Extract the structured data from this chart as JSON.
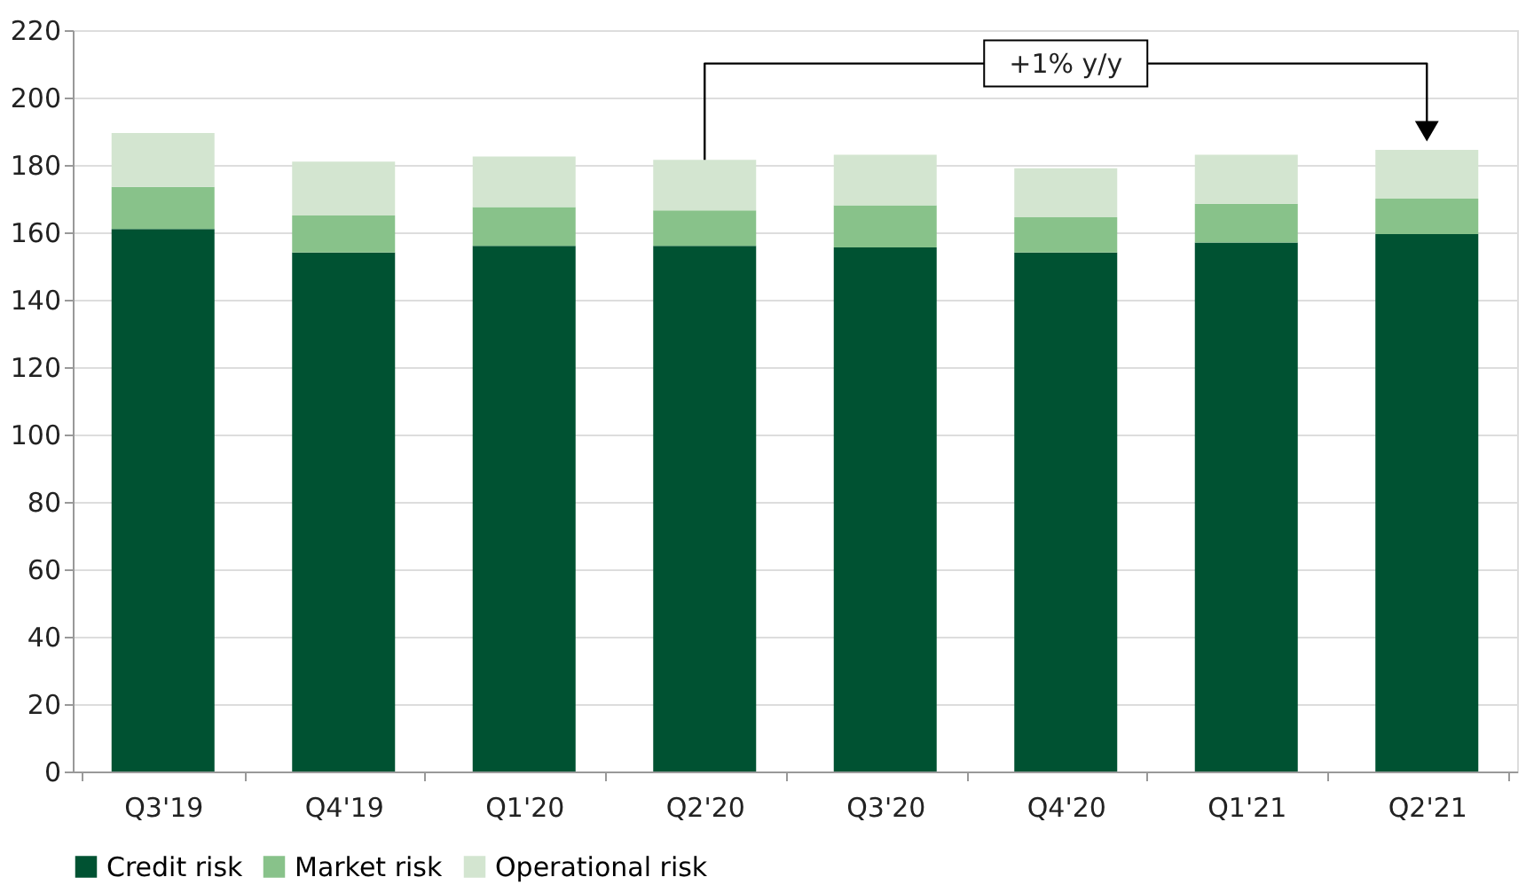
{
  "chart_data": {
    "type": "bar",
    "stacked": true,
    "categories": [
      "Q3'19",
      "Q4'19",
      "Q1'20",
      "Q2'20",
      "Q3'20",
      "Q4'20",
      "Q1'21",
      "Q2'21"
    ],
    "series": [
      {
        "name": "Credit risk",
        "color": "#005232",
        "values": [
          161,
          154,
          156,
          156,
          155.5,
          154,
          157,
          159.5
        ]
      },
      {
        "name": "Market risk",
        "color": "#88c28a",
        "values": [
          12.5,
          11,
          11.5,
          10.5,
          12.5,
          10.5,
          11.5,
          10.5
        ]
      },
      {
        "name": "Operational risk",
        "color": "#d3e5d0",
        "values": [
          16,
          16,
          15,
          15,
          15,
          14.5,
          14.5,
          14.5
        ]
      }
    ],
    "ylim": [
      0,
      220
    ],
    "yticks": [
      0,
      20,
      40,
      60,
      80,
      100,
      120,
      140,
      160,
      180,
      200,
      220
    ],
    "grid": "y",
    "legend": "bottom",
    "annotations": [
      "+1% y/y"
    ]
  }
}
